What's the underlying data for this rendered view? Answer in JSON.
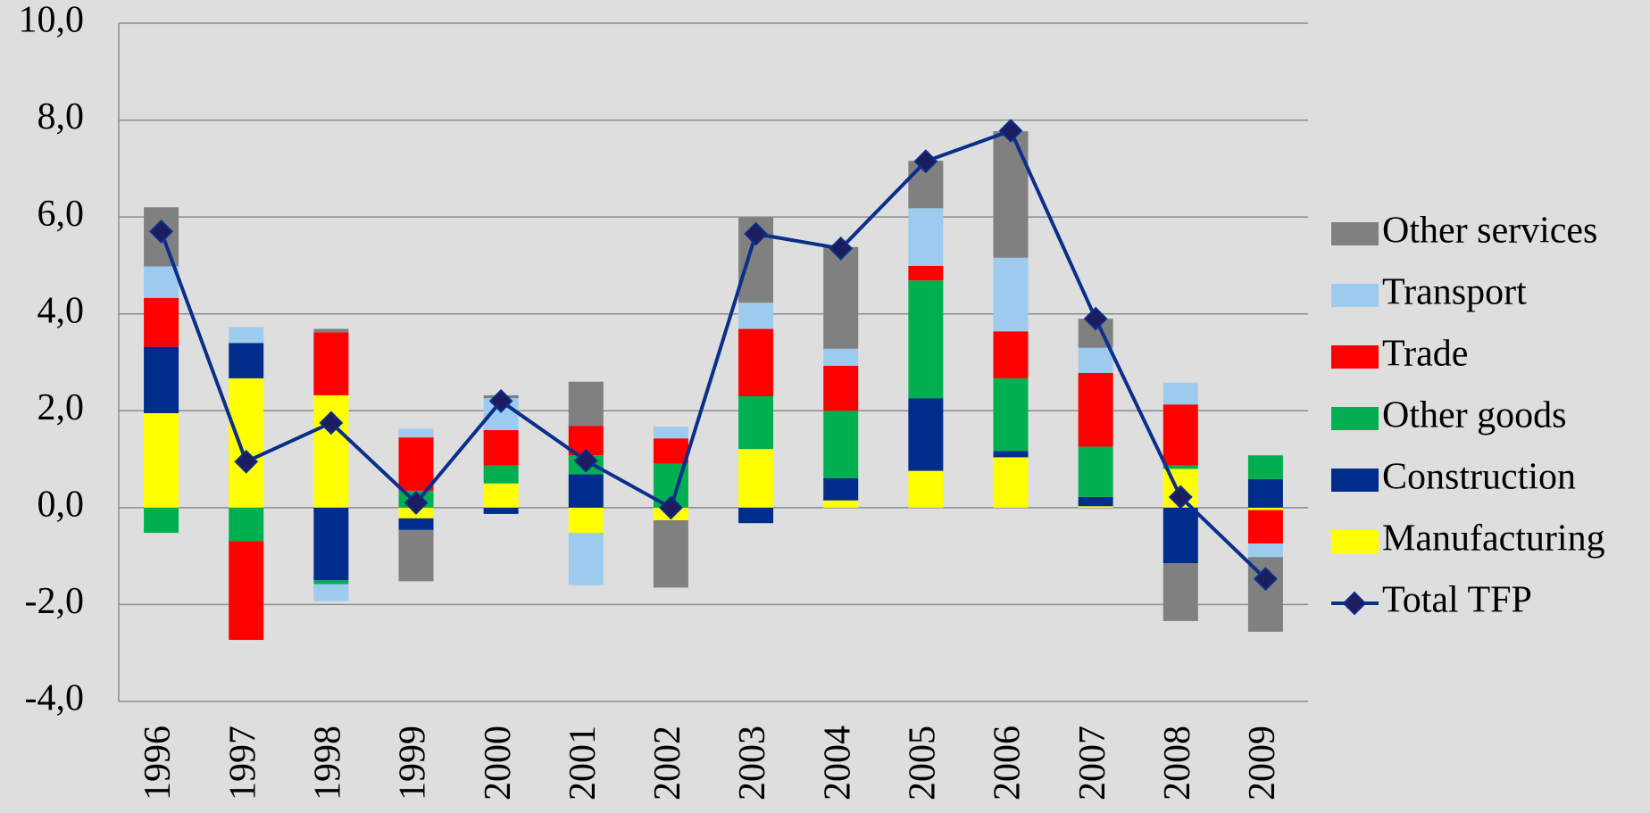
{
  "chart_data": {
    "type": "bar",
    "stacked": true,
    "categories": [
      "1996",
      "1997",
      "1998",
      "1999",
      "2000",
      "2001",
      "2002",
      "2003",
      "2004",
      "2005",
      "2006",
      "2007",
      "2008",
      "2009"
    ],
    "series": [
      {
        "name": "Manufacturing",
        "color": "#ffff00",
        "values": [
          1.95,
          2.67,
          2.32,
          -0.22,
          0.5,
          -0.52,
          -0.26,
          1.21,
          0.15,
          0.76,
          1.04,
          0.03,
          0.8,
          -0.05
        ]
      },
      {
        "name": "Construction",
        "color": "#002d8c",
        "values": [
          1.37,
          0.73,
          -1.5,
          -0.24,
          -0.13,
          0.69,
          0,
          -0.32,
          0.46,
          1.5,
          0.13,
          0.19,
          -1.15,
          0.59
        ]
      },
      {
        "name": "Other goods",
        "color": "#00b050",
        "values": [
          -0.52,
          -0.69,
          -0.08,
          0.35,
          0.37,
          0.39,
          0.91,
          1.09,
          1.39,
          2.43,
          1.5,
          1.04,
          0.07,
          0.49
        ]
      },
      {
        "name": "Trade",
        "color": "#ff0000",
        "values": [
          1.01,
          -2.04,
          1.3,
          1.1,
          0.73,
          0.61,
          0.52,
          1.39,
          0.93,
          0.3,
          0.97,
          1.52,
          1.26,
          -0.69
        ]
      },
      {
        "name": "Transport",
        "color": "#9dcbee",
        "values": [
          0.65,
          0.33,
          -0.35,
          0.18,
          0.66,
          -1.08,
          0.24,
          0.54,
          0.35,
          1.19,
          1.52,
          0.52,
          0.45,
          -0.28
        ]
      },
      {
        "name": "Other services",
        "color": "#808080",
        "values": [
          1.22,
          0,
          0.07,
          -1.06,
          0.06,
          0.91,
          -1.39,
          1.76,
          2.1,
          0.98,
          2.61,
          0.6,
          -1.19,
          -1.54
        ]
      },
      {
        "name": "Total TFP",
        "type": "line",
        "color": "#0a2f8a",
        "marker_color": "#1c1c5e",
        "values": [
          5.7,
          0.95,
          1.75,
          0.1,
          2.2,
          0.97,
          0.0,
          5.65,
          5.35,
          7.15,
          7.78,
          3.9,
          0.22,
          -1.47
        ]
      }
    ],
    "ylim": [
      -4,
      10
    ],
    "yticks": [
      {
        "value": -4,
        "label": "-4,0"
      },
      {
        "value": -2,
        "label": "-2,0"
      },
      {
        "value": 0,
        "label": "0,0"
      },
      {
        "value": 2,
        "label": "2,0"
      },
      {
        "value": 4,
        "label": "4,0"
      },
      {
        "value": 6,
        "label": "6,0"
      },
      {
        "value": 8,
        "label": "8,0"
      },
      {
        "value": 10,
        "label": "10,0"
      }
    ],
    "grid": true,
    "legend": "right"
  }
}
